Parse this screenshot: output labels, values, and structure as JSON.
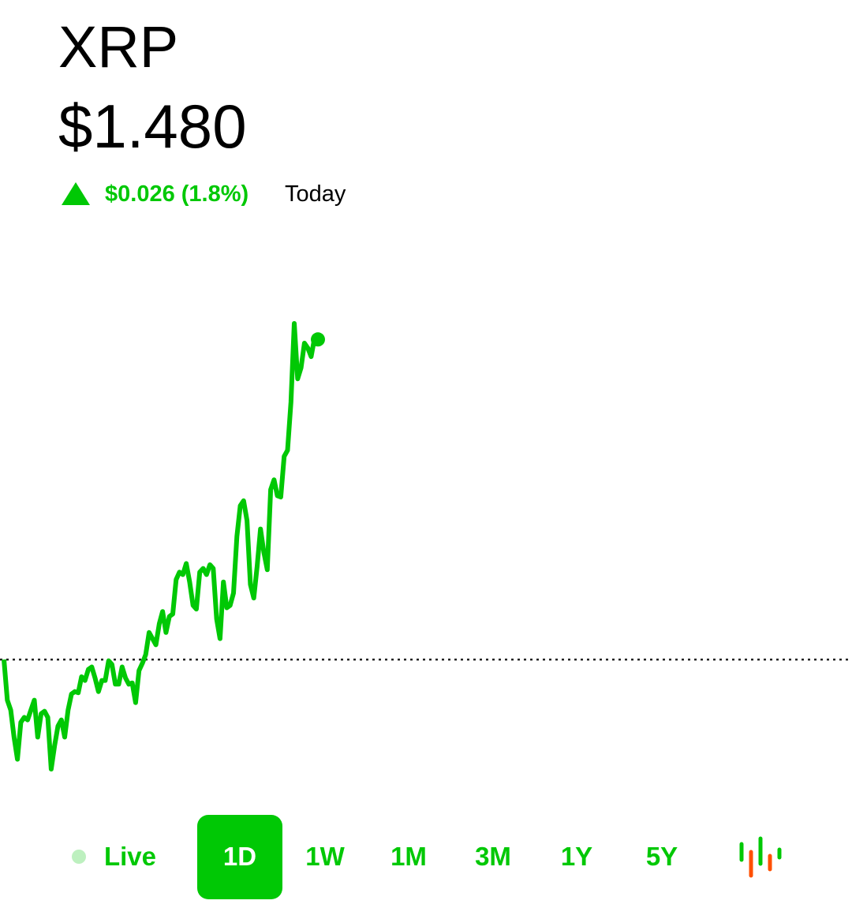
{
  "header": {
    "symbol": "XRP",
    "price": "$1.480",
    "change": "$0.026 (1.8%)",
    "period": "Today"
  },
  "chart_data": {
    "type": "line",
    "color": "#00c805",
    "values": [
      1.454,
      1.4507,
      1.4499,
      1.4477,
      1.4459,
      1.4489,
      1.4493,
      1.4491,
      1.4499,
      1.4507,
      1.4477,
      1.4496,
      1.4498,
      1.4493,
      1.4451,
      1.447,
      1.4486,
      1.4491,
      1.4477,
      1.4499,
      1.4512,
      1.4514,
      1.4513,
      1.4526,
      1.4523,
      1.4532,
      1.4534,
      1.4525,
      1.4514,
      1.4523,
      1.4523,
      1.4539,
      1.4536,
      1.452,
      1.452,
      1.4534,
      1.4525,
      1.452,
      1.4521,
      1.4505,
      1.4531,
      1.4537,
      1.4544,
      1.4562,
      1.4557,
      1.4552,
      1.4569,
      1.4579,
      1.4562,
      1.4575,
      1.4577,
      1.4605,
      1.4611,
      1.4609,
      1.4618,
      1.4603,
      1.4584,
      1.4581,
      1.4611,
      1.4614,
      1.4609,
      1.4617,
      1.4614,
      1.4573,
      1.4557,
      1.4603,
      1.4582,
      1.4584,
      1.4594,
      1.464,
      1.4665,
      1.4669,
      1.4653,
      1.4601,
      1.459,
      1.4616,
      1.4646,
      1.4627,
      1.4613,
      1.4678,
      1.4686,
      1.4673,
      1.4672,
      1.4705,
      1.471,
      1.4749,
      1.4813,
      1.4768,
      1.4777,
      1.4797,
      1.4793,
      1.4786,
      1.4801,
      1.48
    ],
    "reference_line": 1.454
  },
  "range_selector": {
    "options": [
      "Live",
      "1D",
      "1W",
      "1M",
      "3M",
      "1Y",
      "5Y"
    ],
    "selected": 1
  }
}
